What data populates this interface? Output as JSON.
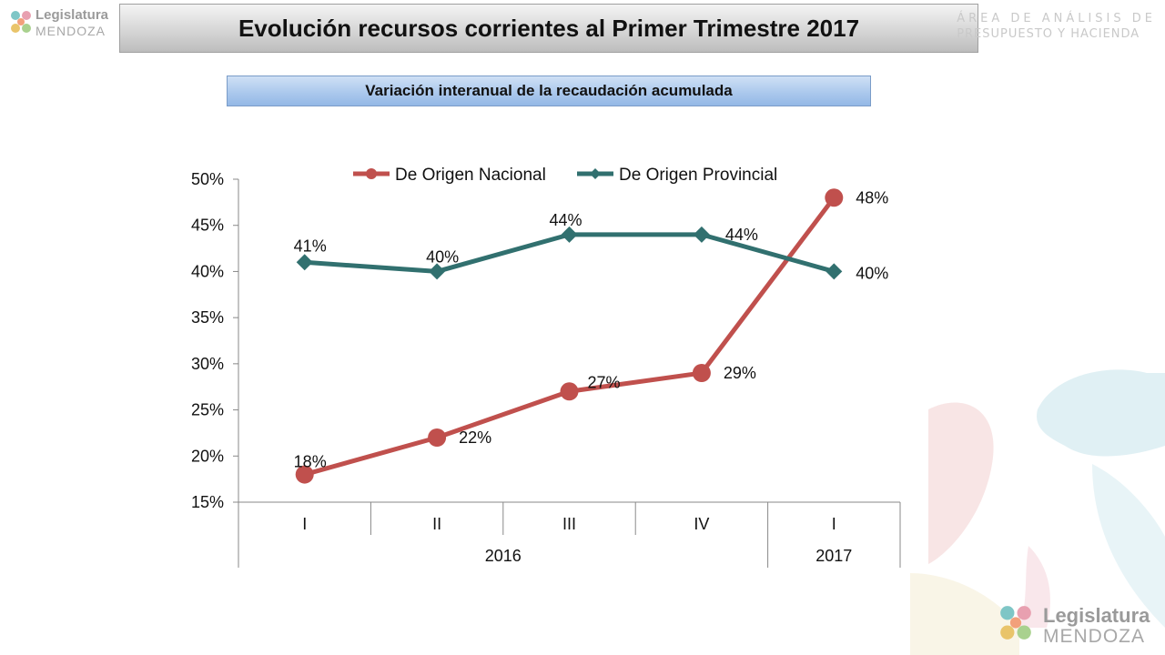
{
  "header": {
    "title": "Evolución recursos corrientes al Primer Trimestre 2017",
    "department_line1": "ÁREA DE ANÁLISIS DE",
    "department_line2": "PRESUPUESTO Y HACIENDA"
  },
  "logo": {
    "line1": "Legislatura",
    "line2": "MENDOZA"
  },
  "subtitle": "Variación interanual de la recaudación acumulada",
  "colors": {
    "nacional": "#c0504d",
    "provincial": "#31706f",
    "axis": "#888888"
  },
  "chart_data": {
    "type": "line",
    "title": "",
    "categories": [
      "I",
      "II",
      "III",
      "IV",
      "I"
    ],
    "category_groups": [
      {
        "label": "2016",
        "span": 4
      },
      {
        "label": "2017",
        "span": 1
      }
    ],
    "series": [
      {
        "name": "De Origen Nacional",
        "values": [
          18,
          22,
          27,
          29,
          48
        ],
        "labels": [
          "18%",
          "22%",
          "27%",
          "29%",
          "48%"
        ],
        "marker": "circle"
      },
      {
        "name": "De Origen Provincial",
        "values": [
          41,
          40,
          44,
          44,
          40
        ],
        "labels": [
          "41%",
          "40%",
          "44%",
          "44%",
          "40%"
        ],
        "marker": "diamond"
      }
    ],
    "ylim": [
      15,
      50
    ],
    "yticks": [
      "15%",
      "20%",
      "25%",
      "30%",
      "35%",
      "40%",
      "45%",
      "50%"
    ],
    "ytick_values": [
      15,
      20,
      25,
      30,
      35,
      40,
      45,
      50
    ],
    "grid": false,
    "legend_position": "top"
  }
}
